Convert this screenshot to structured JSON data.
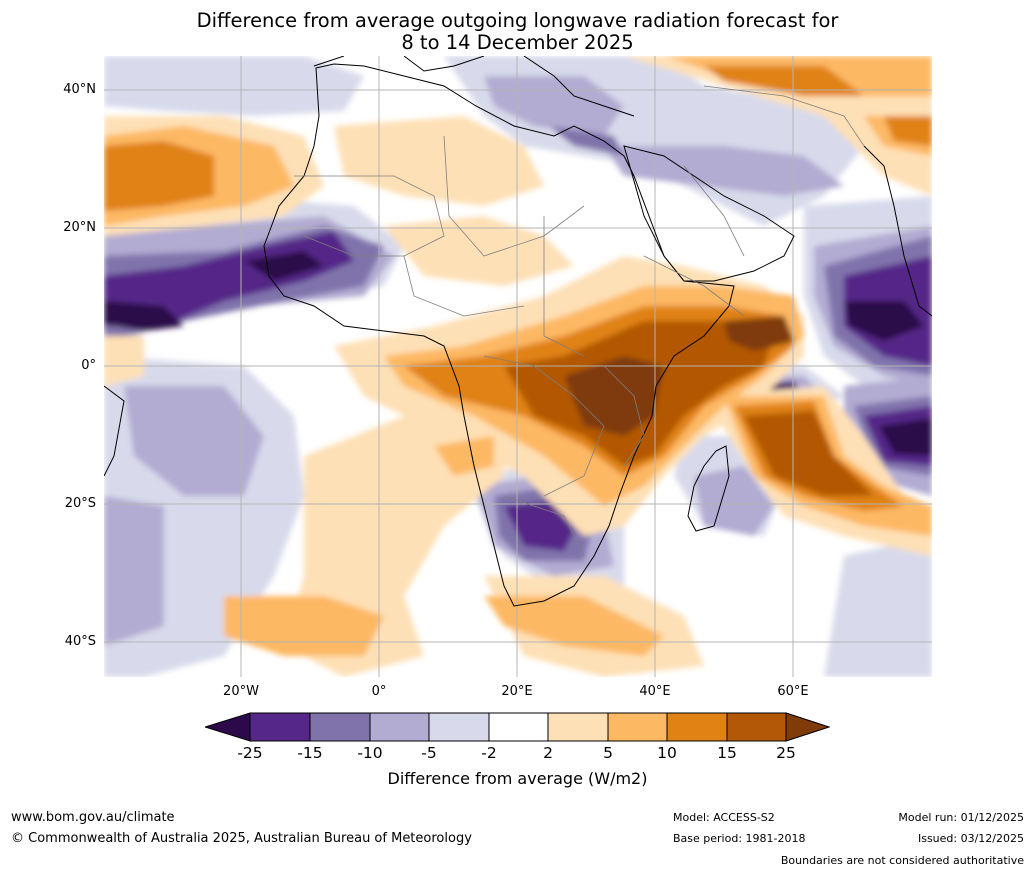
{
  "title_line1": "Difference from average outgoing longwave radiation forecast for",
  "title_line2": "8 to 14 December 2025",
  "map": {
    "lat_labels": [
      "40°N",
      "20°N",
      "0°",
      "20°S",
      "40°S"
    ],
    "lon_labels": [
      "20°W",
      "0°",
      "20°E",
      "40°E",
      "60°E"
    ],
    "grid_color": "#b4b4b4",
    "coast_color": "#000000",
    "border_color": "#7f7f7f"
  },
  "colorbar": {
    "ticks": [
      "-25",
      "-15",
      "-10",
      "-5",
      "-2",
      "2",
      "5",
      "10",
      "15",
      "25"
    ],
    "colors": {
      "lt_m25": "#2c0a4a",
      "m25_m15": "#542788",
      "m15_m10": "#8073ac",
      "m10_m5": "#b2abd2",
      "m5_m2": "#d8daeb",
      "m2_p2": "#ffffff",
      "p2_p5": "#fee0b6",
      "p5_p10": "#fdb863",
      "p10_p15": "#e08214",
      "p15_p25": "#b35806",
      "gt_p25": "#7f3b08"
    },
    "label": "Difference from average (W/m2)"
  },
  "footer": {
    "website": "www.bom.gov.au/climate",
    "copyright": "© Commonwealth of Australia 2025, Australian Bureau of Meteorology",
    "model": "Model: ACCESS-S2",
    "base_period": "Base period: 1981-2018",
    "model_run": "Model run: 01/12/2025",
    "issued": "Issued: 03/12/2025",
    "disclaimer": "Boundaries are not considered authoritative"
  }
}
